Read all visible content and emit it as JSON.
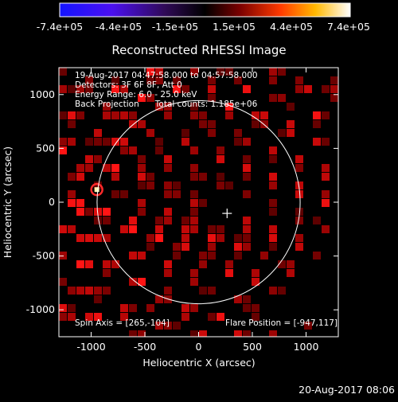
{
  "chart_data": {
    "type": "heatmap",
    "title": "Reconstructed RHESSI Image",
    "xlabel": "Heliocentric X (arcsec)",
    "ylabel": "Heliocentric Y (arcsec)",
    "xlim": [
      -1300,
      1300
    ],
    "ylim": [
      -1250,
      1250
    ],
    "xticks": [
      "-1000",
      "-500",
      "0",
      "500",
      "1000"
    ],
    "yticks": [
      "1000",
      "500",
      "0",
      "-500",
      "-1000"
    ],
    "colorbar": {
      "ticks": [
        "-7.4e+05",
        "-4.4e+05",
        "-1.5e+05",
        "1.5e+05",
        "4.4e+05",
        "7.4e+05"
      ],
      "min": -740000,
      "max": 740000
    },
    "info_lines": [
      "19-Aug-2017 04:47:58.000 to 04:57:58.000",
      "Detectors: 3F 6F 8F, Att 0",
      "Energy Range: 6.0 - 25.0 keV",
      "Back Projection      Total counts: 1.185e+06"
    ],
    "spin_axis": "Spin Axis = [265,-104]",
    "flare_position": "Flare Position = [-947,117]",
    "flare_xy": [
      -947,
      117
    ],
    "spin_axis_xy": [
      265,
      -104
    ],
    "solar_disk_center": [
      0,
      0
    ],
    "solar_radius_arcsec": 945,
    "timestamp": "20-Aug-2017 08:06",
    "colors": {
      "background": "#000000",
      "text": "#ffffff",
      "image_hot": "#ff1a1a",
      "flare_peak": "#fff4b0"
    }
  }
}
